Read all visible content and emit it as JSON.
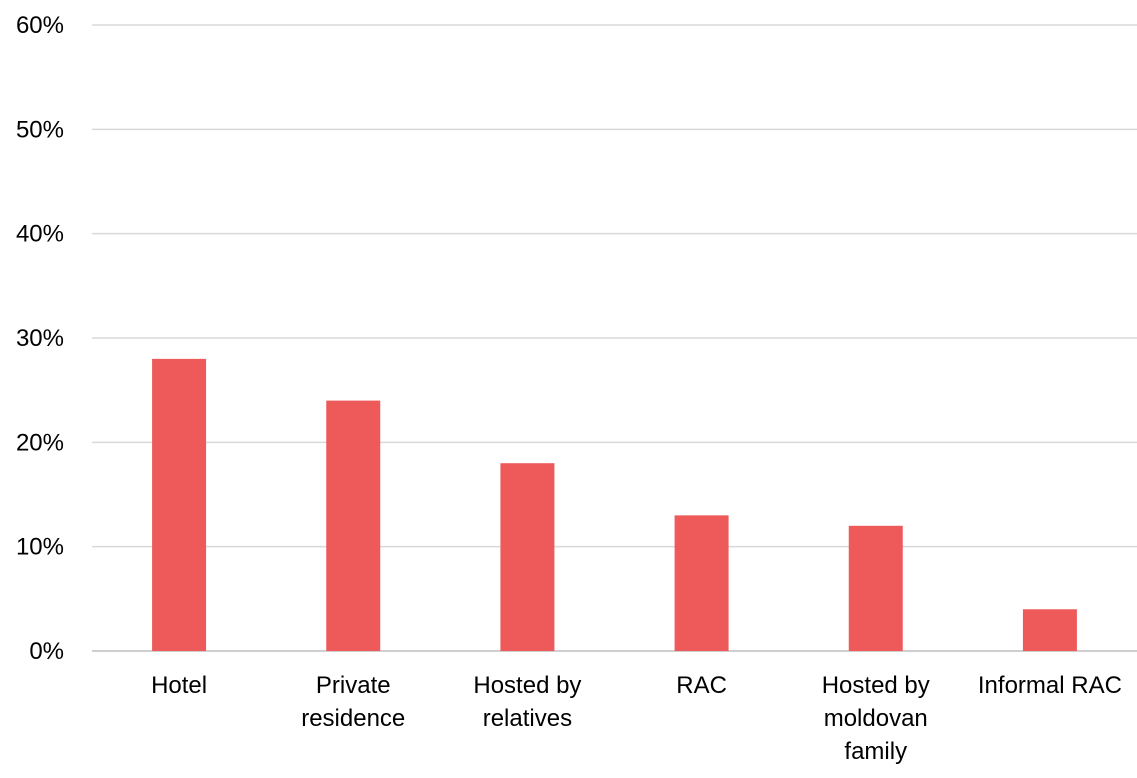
{
  "chart_data": {
    "type": "bar",
    "categories": [
      "Hotel",
      "Private residence",
      "Hosted by relatives",
      "RAC",
      "Hosted by moldovan family",
      "Informal RAC"
    ],
    "category_label_lines": [
      [
        "Hotel"
      ],
      [
        "Private",
        "residence"
      ],
      [
        "Hosted by",
        "relatives"
      ],
      [
        "RAC"
      ],
      [
        "Hosted by",
        "moldovan",
        "family"
      ],
      [
        "Informal RAC"
      ]
    ],
    "values": [
      28,
      24,
      18,
      13,
      12,
      4
    ],
    "value_unit": "%",
    "ylim": [
      0,
      60
    ],
    "yticks": [
      0,
      10,
      20,
      30,
      40,
      50,
      60
    ],
    "ytick_labels": [
      "0%",
      "10%",
      "20%",
      "30%",
      "40%",
      "50%",
      "60%"
    ],
    "title": "",
    "xlabel": "",
    "ylabel": "",
    "grid": true,
    "legend": "none",
    "bar_color": "#ee5a5a",
    "grid_color": "#d9d9d9"
  }
}
